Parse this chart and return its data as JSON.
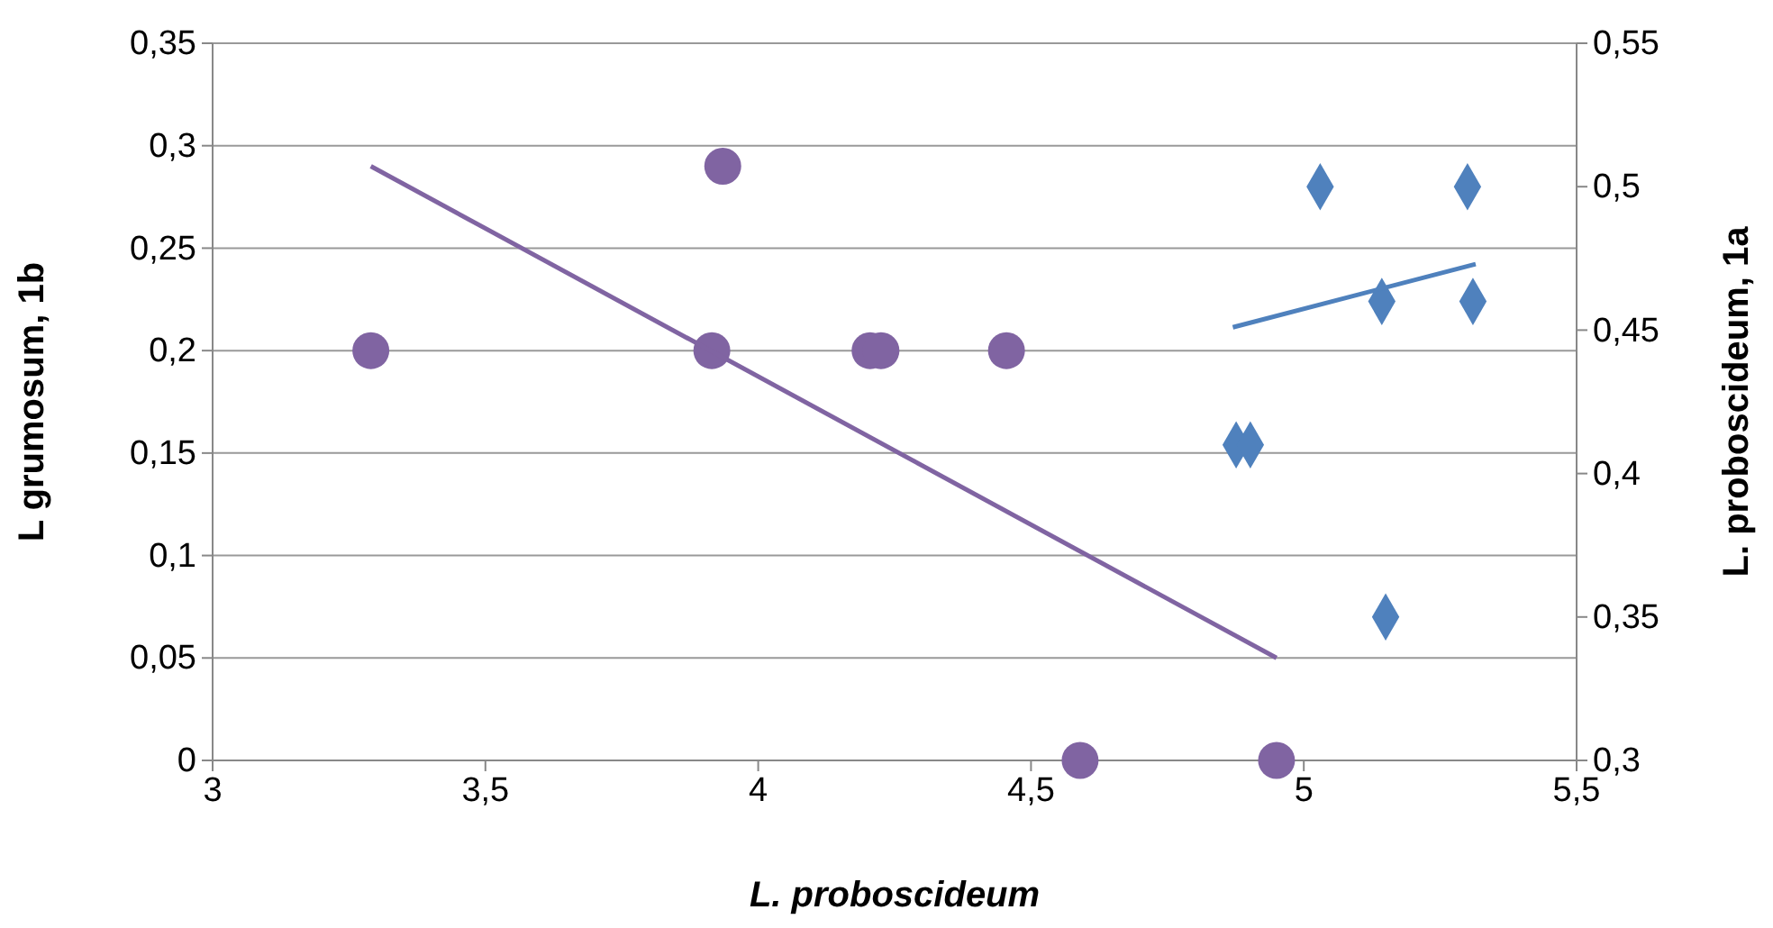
{
  "chart_data": {
    "type": "scatter",
    "xlabel": "L. proboscideum",
    "ylabel": "L grumosum, 1b",
    "y2label": "L. proboscideum, 1a",
    "xlim": [
      3,
      5.5
    ],
    "xticks": [
      3,
      {
        "value": 3.5,
        "label": "3,5"
      },
      4,
      {
        "value": 4.5,
        "label": "4,5"
      },
      5,
      {
        "value": 5.5,
        "label": "5,5"
      }
    ],
    "ylim": [
      0,
      0.35
    ],
    "yticks": [
      0,
      {
        "value": 0.05,
        "label": "0,05"
      },
      {
        "value": 0.1,
        "label": "0,1"
      },
      {
        "value": 0.15,
        "label": "0,15"
      },
      {
        "value": 0.2,
        "label": "0,2"
      },
      {
        "value": 0.25,
        "label": "0,25"
      },
      {
        "value": 0.3,
        "label": "0,3"
      },
      {
        "value": 0.35,
        "label": "0,35"
      }
    ],
    "y2lim": [
      0.3,
      0.55
    ],
    "y2ticks": [
      {
        "value": 0.3,
        "label": "0,3"
      },
      {
        "value": 0.35,
        "label": "0,35"
      },
      {
        "value": 0.4,
        "label": "0,4"
      },
      {
        "value": 0.45,
        "label": "0,45"
      },
      {
        "value": 0.5,
        "label": "0,5"
      },
      {
        "value": 0.55,
        "label": "0,55"
      }
    ],
    "grid": "y",
    "series": [
      {
        "type": "scatter",
        "color": "#8064a2",
        "marker": "circle",
        "x": [
          3.29,
          3.915,
          3.935,
          4.205,
          4.225,
          4.455,
          4.59,
          4.95
        ],
        "values": [
          0.2,
          0.2,
          0.29,
          0.2,
          0.2,
          0.2,
          0,
          0
        ]
      },
      {
        "type": "line",
        "color": "#8064a2",
        "marker": "none",
        "x": [
          3.29,
          4.95
        ],
        "values": [
          0.29,
          0.05
        ]
      },
      {
        "type": "scatter",
        "color": "#4f81bd",
        "marker": "diamond",
        "axis": "y2",
        "x": [
          4.876,
          4.902,
          5.03,
          5.143,
          5.15,
          5.3,
          5.31
        ],
        "values": [
          0.41,
          0.41,
          0.5,
          0.46,
          0.35,
          0.5,
          0.46
        ]
      },
      {
        "type": "line",
        "color": "#4f81bd",
        "marker": "none",
        "axis": "y2",
        "x": [
          4.87,
          5.315
        ],
        "values": [
          0.451,
          0.473
        ]
      }
    ]
  }
}
